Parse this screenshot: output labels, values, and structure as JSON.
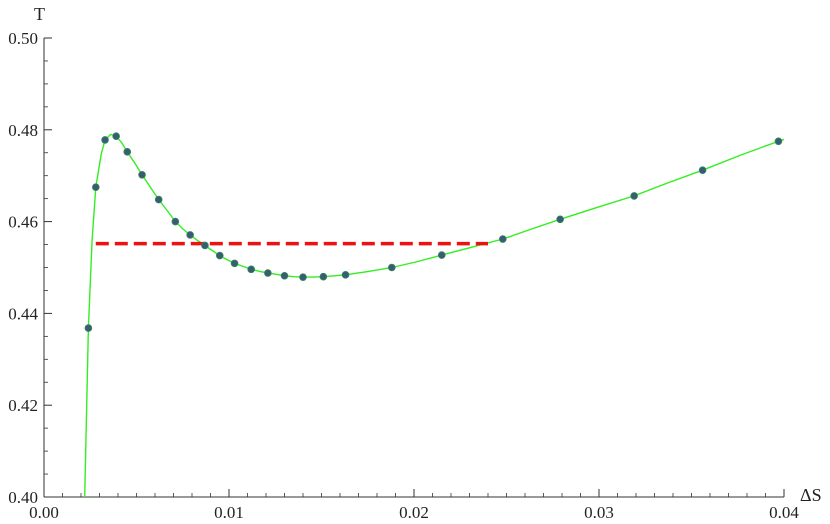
{
  "chart_data": {
    "type": "scatter",
    "title": "",
    "xlabel": "ΔS",
    "ylabel": "T",
    "xlim": [
      0.0,
      0.04
    ],
    "ylim": [
      0.4,
      0.5
    ],
    "x_ticks": [
      "0.00",
      "0.01",
      "0.02",
      "0.03",
      "0.04"
    ],
    "y_ticks": [
      "0.40",
      "0.42",
      "0.44",
      "0.46",
      "0.48",
      "0.50"
    ],
    "grid": false,
    "legend": "none",
    "colors": {
      "points": "#3a5a78",
      "point_outline": "#2e8b57",
      "curve": "#33ee22",
      "dashed": "#ee1111",
      "axis": "#333333"
    },
    "series": [
      {
        "values": [
          {
            "x": 0.0024,
            "y": 0.4368
          },
          {
            "x": 0.0028,
            "y": 0.4675
          },
          {
            "x": 0.0033,
            "y": 0.4778
          },
          {
            "x": 0.0039,
            "y": 0.4786
          },
          {
            "x": 0.0045,
            "y": 0.4752
          },
          {
            "x": 0.0053,
            "y": 0.4702
          },
          {
            "x": 0.0062,
            "y": 0.4648
          },
          {
            "x": 0.0071,
            "y": 0.46
          },
          {
            "x": 0.0079,
            "y": 0.4571
          },
          {
            "x": 0.0087,
            "y": 0.4548
          },
          {
            "x": 0.0095,
            "y": 0.4526
          },
          {
            "x": 0.0103,
            "y": 0.4509
          },
          {
            "x": 0.0112,
            "y": 0.4496
          },
          {
            "x": 0.0121,
            "y": 0.4488
          },
          {
            "x": 0.013,
            "y": 0.4482
          },
          {
            "x": 0.014,
            "y": 0.4479
          },
          {
            "x": 0.0151,
            "y": 0.448
          },
          {
            "x": 0.0163,
            "y": 0.4484
          },
          {
            "x": 0.0188,
            "y": 0.45
          },
          {
            "x": 0.0215,
            "y": 0.4527
          },
          {
            "x": 0.0248,
            "y": 0.4562
          },
          {
            "x": 0.0279,
            "y": 0.4605
          },
          {
            "x": 0.0319,
            "y": 0.4656
          },
          {
            "x": 0.0356,
            "y": 0.4712
          },
          {
            "x": 0.0397,
            "y": 0.4775
          }
        ]
      }
    ],
    "curve": {
      "x": [
        0.0022,
        0.0024,
        0.0026,
        0.0028,
        0.0031,
        0.0033,
        0.0036,
        0.0039,
        0.0042,
        0.0045,
        0.0049,
        0.0053,
        0.0058,
        0.0062,
        0.0067,
        0.0071,
        0.0075,
        0.0079,
        0.0083,
        0.0087,
        0.0091,
        0.0095,
        0.0099,
        0.0103,
        0.0108,
        0.0112,
        0.0117,
        0.0121,
        0.0126,
        0.013,
        0.0135,
        0.014,
        0.0146,
        0.0151,
        0.0157,
        0.0163,
        0.0175,
        0.0188,
        0.0201,
        0.0215,
        0.0231,
        0.0248,
        0.0263,
        0.0279,
        0.0299,
        0.0319,
        0.0337,
        0.0356,
        0.0376,
        0.0397,
        0.04
      ],
      "y": [
        0.4,
        0.4368,
        0.456,
        0.4675,
        0.4748,
        0.4778,
        0.479,
        0.4786,
        0.4772,
        0.4752,
        0.4728,
        0.4702,
        0.4672,
        0.4648,
        0.4622,
        0.46,
        0.4584,
        0.4571,
        0.4559,
        0.4548,
        0.4537,
        0.4526,
        0.4517,
        0.4509,
        0.4502,
        0.4496,
        0.4491,
        0.4488,
        0.4485,
        0.4482,
        0.448,
        0.4479,
        0.4479,
        0.448,
        0.4482,
        0.4484,
        0.4491,
        0.45,
        0.4512,
        0.4527,
        0.4544,
        0.4562,
        0.4583,
        0.4605,
        0.4631,
        0.4656,
        0.4684,
        0.4712,
        0.4744,
        0.4775,
        0.4779
      ]
    },
    "dashed_line": {
      "x": [
        0.0028,
        0.024
      ],
      "y": 0.4552
    }
  }
}
